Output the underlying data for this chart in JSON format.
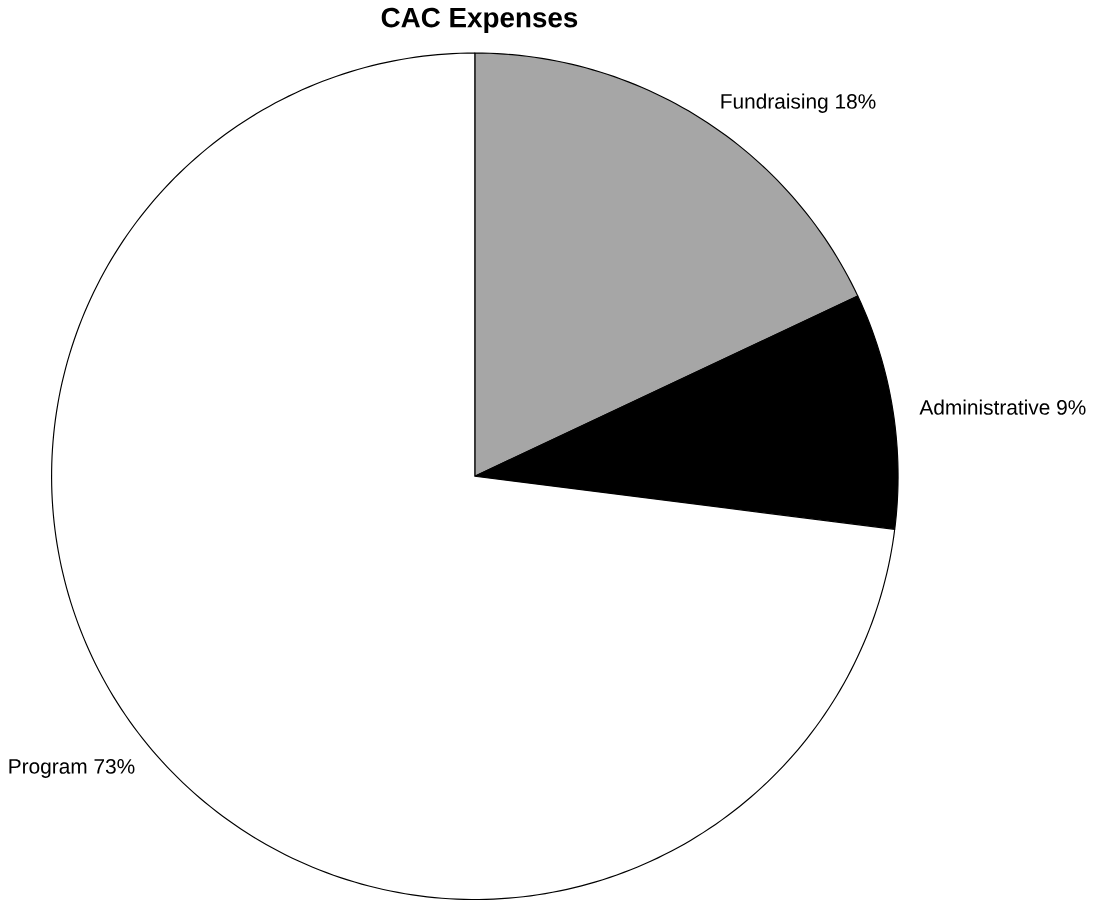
{
  "chart_data": {
    "type": "pie",
    "title": "CAC Expenses",
    "categories": [
      "Fundraising",
      "Administrative",
      "Program"
    ],
    "values": [
      18,
      9,
      73
    ],
    "value_labels": [
      "18%",
      "9%",
      "73%"
    ],
    "colors": [
      "#a6a6a6",
      "#000000",
      "#ffffff"
    ]
  }
}
